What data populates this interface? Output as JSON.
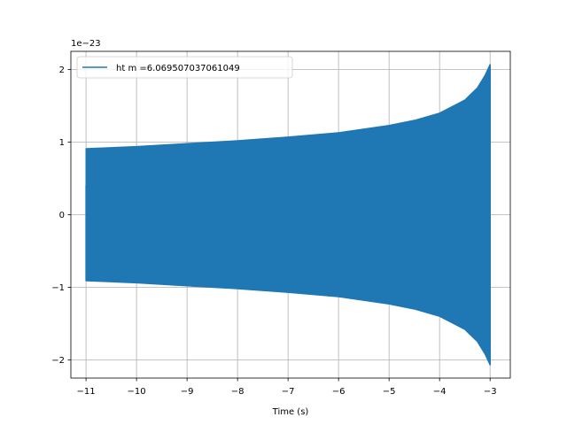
{
  "chart_data": {
    "type": "line",
    "title": "",
    "xlabel": "Time (s)",
    "ylabel": "",
    "y_scale_label": "1e−23",
    "xlim": [
      -11.3,
      -2.6
    ],
    "ylim": [
      -2.25,
      2.25
    ],
    "x_ticks": [
      -11,
      -10,
      -9,
      -8,
      -7,
      -6,
      -5,
      -4,
      -3
    ],
    "x_tick_labels": [
      "−11",
      "−10",
      "−9",
      "−8",
      "−7",
      "−6",
      "−5",
      "−4",
      "−3"
    ],
    "y_ticks": [
      -2,
      -1,
      0,
      1,
      2
    ],
    "y_tick_labels": [
      "−2",
      "−1",
      "0",
      "1",
      "2"
    ],
    "grid": true,
    "legend_position": "top-left",
    "series": [
      {
        "name": "ht m =6.069507037061049",
        "color": "#1f77b4",
        "envelope": {
          "x": [
            -11.0,
            -10.0,
            -9.0,
            -8.0,
            -7.0,
            -6.0,
            -5.0,
            -4.5,
            -4.0,
            -3.5,
            -3.25,
            -3.1,
            -3.0
          ],
          "upper": [
            0.91,
            0.94,
            0.98,
            1.02,
            1.07,
            1.13,
            1.23,
            1.3,
            1.4,
            1.58,
            1.75,
            1.92,
            2.07
          ],
          "lower": [
            -0.91,
            -0.94,
            -0.98,
            -1.02,
            -1.07,
            -1.13,
            -1.23,
            -1.3,
            -1.4,
            -1.58,
            -1.75,
            -1.92,
            -2.07
          ]
        }
      }
    ]
  }
}
